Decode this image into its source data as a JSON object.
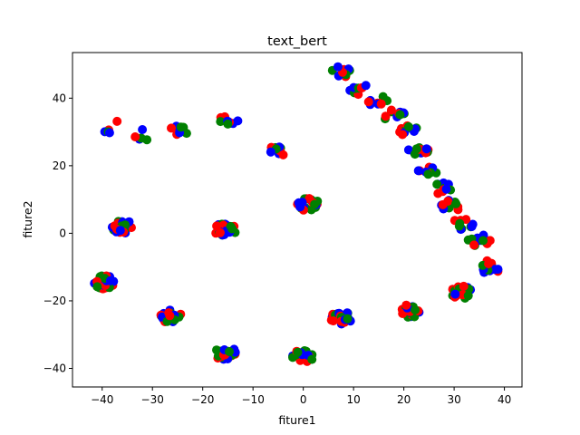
{
  "chart_data": {
    "type": "scatter",
    "title": "text_bert",
    "xlabel": "fiture1",
    "ylabel": "fiture2",
    "xlim": [
      -45.9,
      43.5
    ],
    "ylim": [
      -45.5,
      53.5
    ],
    "xticks": [
      -40,
      -30,
      -20,
      -10,
      0,
      10,
      20,
      30,
      40
    ],
    "yticks": [
      -40,
      -20,
      0,
      20,
      40
    ],
    "grid": false,
    "legend": "none",
    "colors": [
      "#ff0000",
      "#0000ff",
      "#008000"
    ],
    "clusters": [
      {
        "x": -38,
        "y": 31.5,
        "n": 5
      },
      {
        "x": -32.5,
        "y": 29,
        "n": 5
      },
      {
        "x": -25,
        "y": 30.5,
        "n": 7
      },
      {
        "x": -14.5,
        "y": 33.5,
        "n": 9
      },
      {
        "x": -4.5,
        "y": 24.5,
        "n": 10
      },
      {
        "x": 1,
        "y": 8.5,
        "n": 22
      },
      {
        "x": -36,
        "y": 2,
        "n": 26
      },
      {
        "x": -15.5,
        "y": 1,
        "n": 24
      },
      {
        "x": -39.5,
        "y": -14.5,
        "n": 28
      },
      {
        "x": -26.5,
        "y": -24.5,
        "n": 22
      },
      {
        "x": -15.5,
        "y": -35.5,
        "n": 26
      },
      {
        "x": 0,
        "y": -36.5,
        "n": 22
      },
      {
        "x": 7.5,
        "y": -25,
        "n": 24
      },
      {
        "x": 21.5,
        "y": -23,
        "n": 24
      },
      {
        "x": 31.5,
        "y": -17.5,
        "n": 20
      },
      {
        "x": 37,
        "y": -10,
        "n": 14
      },
      {
        "x": 35,
        "y": -2,
        "n": 12
      },
      {
        "x": 32,
        "y": 3,
        "n": 10
      },
      {
        "x": 29,
        "y": 8,
        "n": 10
      },
      {
        "x": 27.5,
        "y": 13.5,
        "n": 10
      },
      {
        "x": 25,
        "y": 19,
        "n": 10
      },
      {
        "x": 23,
        "y": 25,
        "n": 12
      },
      {
        "x": 21,
        "y": 30,
        "n": 12
      },
      {
        "x": 18,
        "y": 35,
        "n": 10
      },
      {
        "x": 15,
        "y": 39,
        "n": 10
      },
      {
        "x": 11,
        "y": 43,
        "n": 10
      },
      {
        "x": 7.5,
        "y": 47.5,
        "n": 9
      }
    ]
  }
}
